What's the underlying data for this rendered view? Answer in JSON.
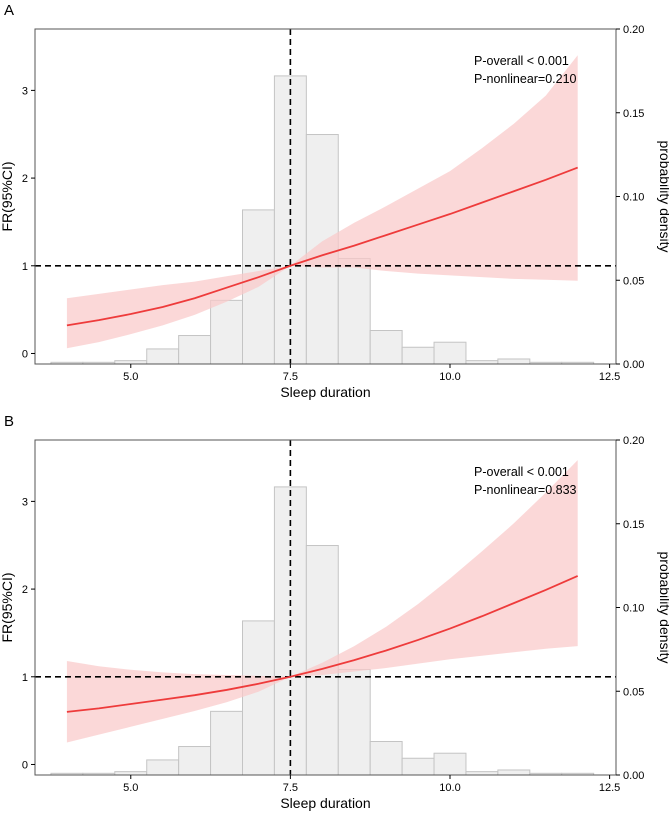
{
  "colors": {
    "curve": "#ee3b3b",
    "band": "#f9c9c9",
    "histogram_fill": "#efefef",
    "histogram_edge": "#c4c4c4",
    "axis": "#000000",
    "panel_border": "#555555"
  },
  "chart_data": [
    {
      "panel_label": "A",
      "type": "line+histogram",
      "xlabel": "Sleep duration",
      "ylabel": "FR(95%CI)",
      "y2label": "probability density",
      "xlim": [
        3.5,
        12.6
      ],
      "ylim": [
        -0.12,
        3.7
      ],
      "y2lim": [
        0,
        0.2
      ],
      "x_ticks": [
        5.0,
        7.5,
        10.0,
        12.5
      ],
      "x_tick_labels": [
        "5.0",
        "7.5",
        "10.0",
        "12.5"
      ],
      "y_ticks": [
        0,
        1,
        2,
        3
      ],
      "y_tick_labels": [
        "0",
        "1",
        "2",
        "3"
      ],
      "y2_ticks": [
        0,
        0.05,
        0.1,
        0.15,
        0.2
      ],
      "y2_tick_labels": [
        "0.00",
        "0.05",
        "0.10",
        "0.15",
        "0.20"
      ],
      "ref_x": 7.5,
      "ref_y": 1,
      "annotations": [
        "P-overall < 0.001",
        "P-nonlinear=0.210"
      ],
      "histogram": {
        "bin_starts": [
          3.75,
          4.25,
          4.75,
          5.25,
          5.75,
          6.25,
          6.75,
          7.25,
          7.75,
          8.25,
          8.75,
          9.25,
          9.75,
          10.25,
          10.75,
          11.25,
          11.75
        ],
        "bin_width": 0.5,
        "density": [
          0.001,
          0.001,
          0.002,
          0.009,
          0.017,
          0.038,
          0.092,
          0.172,
          0.137,
          0.063,
          0.02,
          0.01,
          0.013,
          0.002,
          0.003,
          0.001,
          0.001
        ]
      },
      "curve": {
        "x": [
          4.0,
          4.5,
          5.0,
          5.5,
          6.0,
          6.5,
          7.0,
          7.5,
          8.0,
          8.5,
          9.0,
          9.5,
          10.0,
          10.5,
          11.0,
          11.5,
          12.0
        ],
        "y": [
          0.32,
          0.38,
          0.45,
          0.53,
          0.63,
          0.75,
          0.87,
          1.0,
          1.12,
          1.23,
          1.35,
          1.47,
          1.59,
          1.72,
          1.85,
          1.98,
          2.12
        ],
        "lower": [
          0.06,
          0.13,
          0.22,
          0.32,
          0.44,
          0.59,
          0.76,
          1.0,
          0.98,
          0.98,
          0.94,
          0.91,
          0.89,
          0.87,
          0.85,
          0.84,
          0.83
        ],
        "upper": [
          0.63,
          0.68,
          0.73,
          0.78,
          0.82,
          0.88,
          0.94,
          1.0,
          1.28,
          1.49,
          1.68,
          1.88,
          2.08,
          2.34,
          2.62,
          2.94,
          3.4
        ]
      }
    },
    {
      "panel_label": "B",
      "type": "line+histogram",
      "xlabel": "Sleep duration",
      "ylabel": "FR(95%CI)",
      "y2label": "probability density",
      "xlim": [
        3.5,
        12.6
      ],
      "ylim": [
        -0.12,
        3.7
      ],
      "y2lim": [
        0,
        0.2
      ],
      "x_ticks": [
        5.0,
        7.5,
        10.0,
        12.5
      ],
      "x_tick_labels": [
        "5.0",
        "7.5",
        "10.0",
        "12.5"
      ],
      "y_ticks": [
        0,
        1,
        2,
        3
      ],
      "y_tick_labels": [
        "0",
        "1",
        "2",
        "3"
      ],
      "y2_ticks": [
        0,
        0.05,
        0.1,
        0.15,
        0.2
      ],
      "y2_tick_labels": [
        "0.00",
        "0.05",
        "0.10",
        "0.15",
        "0.20"
      ],
      "ref_x": 7.5,
      "ref_y": 1,
      "annotations": [
        "P-overall < 0.001",
        "P-nonlinear=0.833"
      ],
      "histogram": {
        "bin_starts": [
          3.75,
          4.25,
          4.75,
          5.25,
          5.75,
          6.25,
          6.75,
          7.25,
          7.75,
          8.25,
          8.75,
          9.25,
          9.75,
          10.25,
          10.75,
          11.25,
          11.75
        ],
        "bin_width": 0.5,
        "density": [
          0.001,
          0.001,
          0.002,
          0.009,
          0.017,
          0.038,
          0.092,
          0.172,
          0.137,
          0.063,
          0.02,
          0.01,
          0.013,
          0.002,
          0.003,
          0.001,
          0.001
        ]
      },
      "curve": {
        "x": [
          4.0,
          4.5,
          5.0,
          5.5,
          6.0,
          6.5,
          7.0,
          7.5,
          8.0,
          8.5,
          9.0,
          9.5,
          10.0,
          10.5,
          11.0,
          11.5,
          12.0
        ],
        "y": [
          0.6,
          0.64,
          0.69,
          0.74,
          0.79,
          0.85,
          0.92,
          1.0,
          1.09,
          1.19,
          1.3,
          1.42,
          1.55,
          1.69,
          1.84,
          1.99,
          2.15
        ],
        "lower": [
          0.25,
          0.34,
          0.43,
          0.52,
          0.61,
          0.71,
          0.83,
          1.0,
          1.02,
          1.06,
          1.1,
          1.15,
          1.2,
          1.24,
          1.28,
          1.32,
          1.35
        ],
        "upper": [
          1.18,
          1.12,
          1.08,
          1.05,
          1.03,
          1.02,
          1.01,
          1.0,
          1.16,
          1.35,
          1.57,
          1.83,
          2.12,
          2.43,
          2.75,
          3.1,
          3.47
        ]
      }
    }
  ]
}
